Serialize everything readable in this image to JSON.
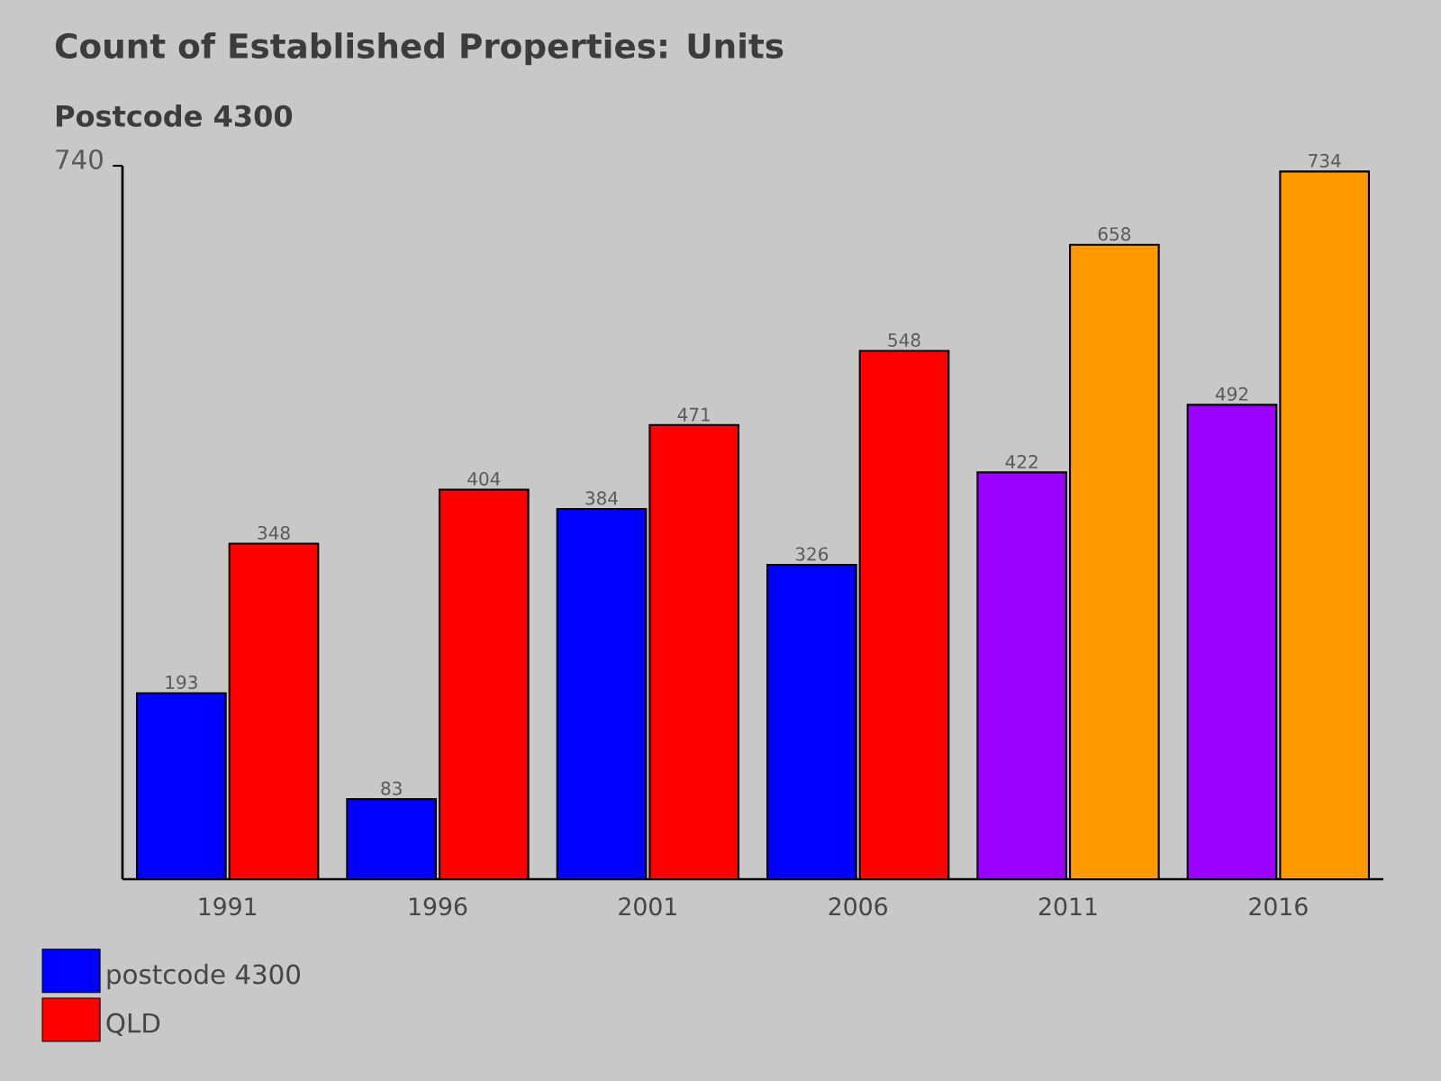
{
  "chart_data": {
    "type": "bar",
    "title": "Count of Established Properties: Units",
    "subtitle": "Postcode 4300",
    "categories": [
      "1991",
      "1996",
      "2001",
      "2006",
      "2011",
      "2016"
    ],
    "series": [
      {
        "name": "postcode 4300",
        "color": "#0000ff",
        "colors": [
          "#0000ff",
          "#0000ff",
          "#0000ff",
          "#0000ff",
          "#9900ff",
          "#9900ff"
        ],
        "values": [
          193,
          83,
          384,
          326,
          422,
          492
        ]
      },
      {
        "name": "QLD",
        "color": "#ff0000",
        "colors": [
          "#ff0000",
          "#ff0000",
          "#ff0000",
          "#ff0000",
          "#ff9900",
          "#ff9900"
        ],
        "values": [
          348,
          404,
          471,
          548,
          658,
          734
        ]
      }
    ],
    "ylim": [
      0,
      740
    ],
    "yticks": [
      740
    ],
    "data_labels": true,
    "legend": "bottom left",
    "grid": false
  }
}
